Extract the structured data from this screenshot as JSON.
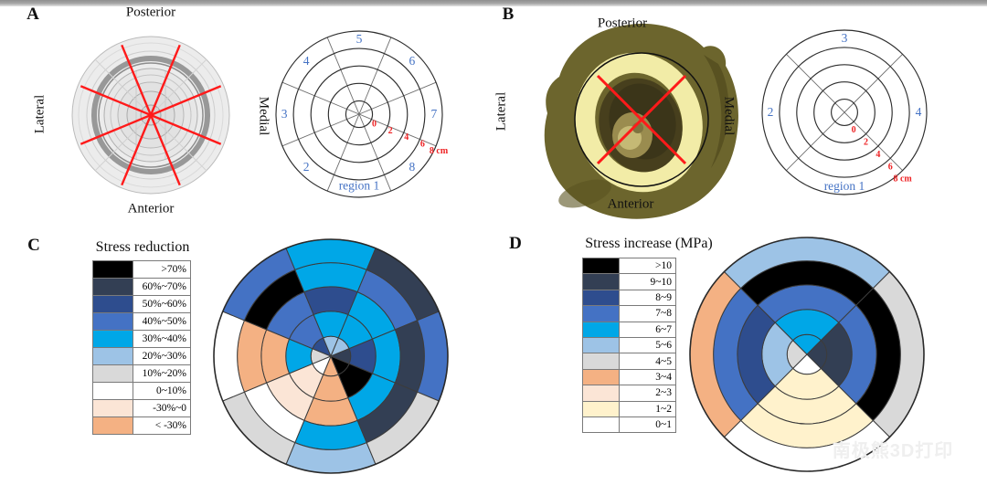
{
  "panels": {
    "A": {
      "letter": "A",
      "orientation": {
        "top": "Posterior",
        "bottom": "Anterior",
        "left": "Lateral",
        "right": "Medial"
      }
    },
    "B": {
      "letter": "B",
      "orientation": {
        "top": "Posterior",
        "bottom": "Anterior",
        "left": "Lateral",
        "right": "Medial"
      }
    },
    "C": {
      "letter": "C",
      "title": "Stress reduction"
    },
    "D": {
      "letter": "D",
      "title": "Stress increase (MPa)"
    }
  },
  "region_diagrams": [
    {
      "panel": "A",
      "sector_boundaries_deg": [
        22.5,
        67.5,
        112.5,
        157.5,
        202.5,
        247.5,
        292.5,
        337.5
      ],
      "ring_fractions": [
        0.16,
        0.37,
        0.58,
        0.79,
        1.0
      ],
      "sector_labels": [
        {
          "text": "region 1",
          "deg": 270,
          "rf": 0.86
        },
        {
          "text": "2",
          "deg": 225,
          "rf": 0.9
        },
        {
          "text": "3",
          "deg": 180,
          "rf": 0.9
        },
        {
          "text": "4",
          "deg": 135,
          "rf": 0.9
        },
        {
          "text": "5",
          "deg": 90,
          "rf": 0.9
        },
        {
          "text": "6",
          "deg": 45,
          "rf": 0.9
        },
        {
          "text": "7",
          "deg": 0,
          "rf": 0.9
        },
        {
          "text": "8",
          "deg": 315,
          "rf": 0.9
        }
      ],
      "radial_ticks": {
        "labels": [
          "0",
          "2",
          "4",
          "6",
          "8 cm"
        ],
        "deg": -22.5,
        "fractions": [
          0.16,
          0.37,
          0.58,
          0.79,
          1.0
        ]
      }
    },
    {
      "panel": "B",
      "sector_boundaries_deg": [
        45,
        135,
        225,
        315
      ],
      "ring_fractions": [
        0.16,
        0.37,
        0.58,
        0.79,
        1.0
      ],
      "sector_labels": [
        {
          "text": "region 1",
          "deg": 270,
          "rf": 0.9
        },
        {
          "text": "2",
          "deg": 180,
          "rf": 0.9
        },
        {
          "text": "3",
          "deg": 90,
          "rf": 0.9
        },
        {
          "text": "4",
          "deg": 0,
          "rf": 0.9
        }
      ],
      "radial_ticks": {
        "labels": [
          "0",
          "2",
          "4",
          "6",
          "8 cm"
        ],
        "deg": -45,
        "fractions": [
          0.16,
          0.37,
          0.58,
          0.79,
          1.0
        ]
      }
    }
  ],
  "chart_data": [
    {
      "type": "heatmap",
      "panel": "C",
      "title": "Stress reduction",
      "polar": true,
      "radial_extent_cm": [
        0,
        8
      ],
      "rings_per_sector": 5,
      "legend_position": "left",
      "legend": [
        {
          "label": ">70%",
          "color": "#000000"
        },
        {
          "label": "60%~70%",
          "color": "#333F54"
        },
        {
          "label": "50%~60%",
          "color": "#2E4D8E"
        },
        {
          "label": "40%~50%",
          "color": "#4472C4"
        },
        {
          "label": "30%~40%",
          "color": "#00A7E7"
        },
        {
          "label": "20%~30%",
          "color": "#9DC3E6"
        },
        {
          "label": "10%~20%",
          "color": "#D9D9D9"
        },
        {
          "label": "0~10%",
          "color": "#FFFFFF"
        },
        {
          "label": "-30%~0",
          "color": "#FBE5D6"
        },
        {
          "label": "< -30%",
          "color": "#F4B183"
        }
      ],
      "sectors": [
        {
          "name": "region 1",
          "center_deg": 270,
          "span_deg": 45,
          "bins_inner_to_outer": [
            "< -30%",
            "< -30%",
            "< -30%",
            "30%~40%",
            "20%~30%"
          ]
        },
        {
          "name": "region 2",
          "center_deg": 225,
          "span_deg": 45,
          "bins_inner_to_outer": [
            "0~10%",
            "-30%~0",
            "-30%~0",
            "0~10%",
            "10%~20%"
          ]
        },
        {
          "name": "region 3",
          "center_deg": 180,
          "span_deg": 45,
          "bins_inner_to_outer": [
            "10%~20%",
            "30%~40%",
            "< -30%",
            "< -30%",
            "0~10%"
          ]
        },
        {
          "name": "region 4",
          "center_deg": 135,
          "span_deg": 45,
          "bins_inner_to_outer": [
            "50%~60%",
            "40%~50%",
            "40%~50%",
            ">70%",
            "40%~50%"
          ]
        },
        {
          "name": "region 5",
          "center_deg": 90,
          "span_deg": 45,
          "bins_inner_to_outer": [
            "20%~30%",
            "30%~40%",
            "50%~60%",
            "30%~40%",
            "30%~40%"
          ]
        },
        {
          "name": "region 6",
          "center_deg": 45,
          "span_deg": 45,
          "bins_inner_to_outer": [
            "20%~30%",
            "30%~40%",
            "30%~40%",
            "40%~50%",
            "60%~70%"
          ]
        },
        {
          "name": "region 7",
          "center_deg": 0,
          "span_deg": 45,
          "bins_inner_to_outer": [
            "60%~70%",
            "50%~60%",
            "30%~40%",
            "60%~70%",
            "40%~50%"
          ]
        },
        {
          "name": "region 8",
          "center_deg": 315,
          "span_deg": 45,
          "bins_inner_to_outer": [
            ">70%",
            ">70%",
            "30%~40%",
            "60%~70%",
            "10%~20%"
          ]
        }
      ]
    },
    {
      "type": "heatmap",
      "panel": "D",
      "title": "Stress increase (MPa)",
      "polar": true,
      "radial_extent_cm": [
        0,
        8
      ],
      "rings_per_sector": 5,
      "legend_position": "left",
      "legend": [
        {
          "label": ">10",
          "color": "#000000"
        },
        {
          "label": "9~10",
          "color": "#333F54"
        },
        {
          "label": "8~9",
          "color": "#2E4D8E"
        },
        {
          "label": "7~8",
          "color": "#4472C4"
        },
        {
          "label": "6~7",
          "color": "#00A7E7"
        },
        {
          "label": "5~6",
          "color": "#9DC3E6"
        },
        {
          "label": "4~5",
          "color": "#D9D9D9"
        },
        {
          "label": "3~4",
          "color": "#F4B183"
        },
        {
          "label": "2~3",
          "color": "#FBE5D6"
        },
        {
          "label": "1~2",
          "color": "#FFF2CC"
        },
        {
          "label": "0~1",
          "color": "#FFFFFF"
        }
      ],
      "sectors": [
        {
          "name": "region 1",
          "center_deg": 270,
          "span_deg": 90,
          "bins_inner_to_outer": [
            "0~1",
            "1~2",
            "1~2",
            "1~2",
            "0~1"
          ]
        },
        {
          "name": "region 2",
          "center_deg": 180,
          "span_deg": 90,
          "bins_inner_to_outer": [
            "4~5",
            "5~6",
            "8~9",
            "7~8",
            "3~4"
          ]
        },
        {
          "name": "region 3",
          "center_deg": 90,
          "span_deg": 90,
          "bins_inner_to_outer": [
            "6~7",
            "6~7",
            "7~8",
            ">10",
            "5~6"
          ]
        },
        {
          "name": "region 4",
          "center_deg": 0,
          "span_deg": 90,
          "bins_inner_to_outer": [
            "9~10",
            "9~10",
            "7~8",
            ">10",
            "4~5"
          ]
        }
      ]
    }
  ],
  "label_colors": {
    "region_label_blue": "#4472C4",
    "tick_label_red": "#EE2224",
    "overlay_line_red": "#FF1A1A"
  },
  "watermark": "南极熊3D打印"
}
